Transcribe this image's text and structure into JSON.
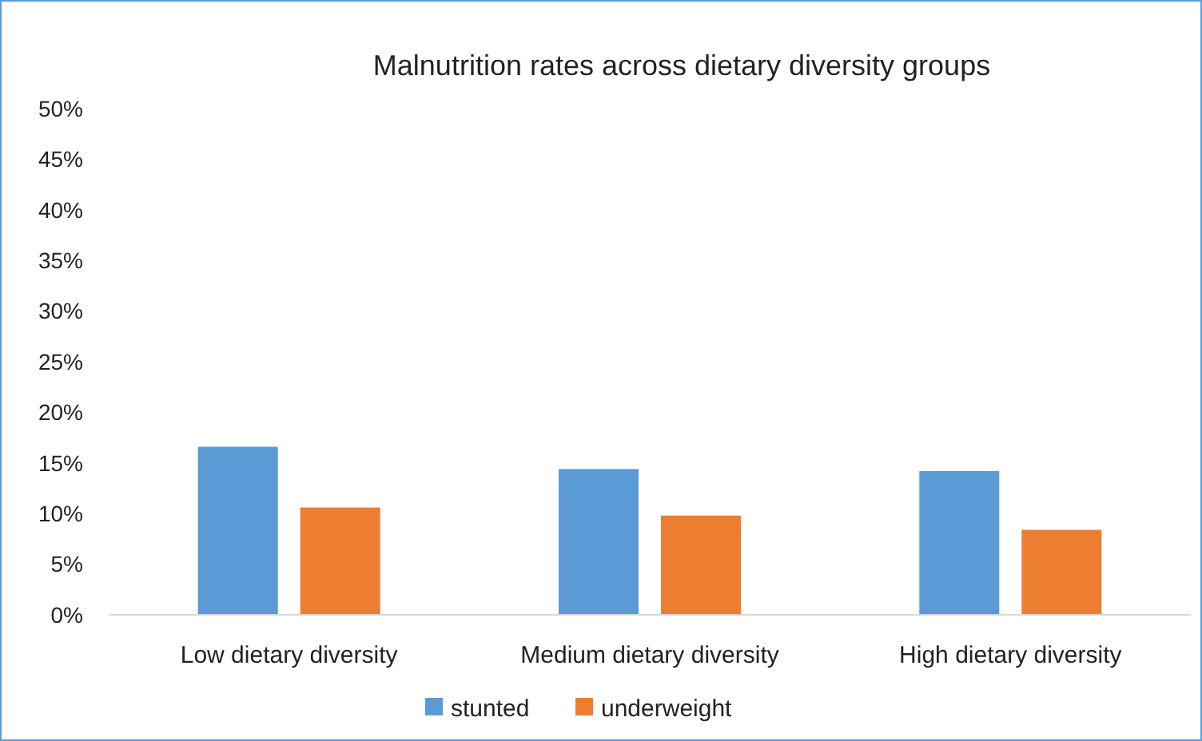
{
  "chart_data": {
    "type": "bar",
    "title": "Malnutrition rates across dietary diversity groups",
    "categories": [
      "Low dietary diversity",
      "Medium dietary diversity",
      "High dietary diversity"
    ],
    "series": [
      {
        "name": "stunted",
        "color": "#5b9bd5",
        "values": [
          16.6,
          14.4,
          14.2
        ]
      },
      {
        "name": "underweight",
        "color": "#ed7d31",
        "values": [
          10.6,
          9.8,
          8.4
        ]
      }
    ],
    "ylim": [
      0,
      50
    ],
    "yticks": [
      {
        "value": 0,
        "label": "0%"
      },
      {
        "value": 5,
        "label": "5%"
      },
      {
        "value": 10,
        "label": "10%"
      },
      {
        "value": 15,
        "label": "15%"
      },
      {
        "value": 20,
        "label": "20%"
      },
      {
        "value": 25,
        "label": "25%"
      },
      {
        "value": 30,
        "label": "30%"
      },
      {
        "value": 35,
        "label": "35%"
      },
      {
        "value": 40,
        "label": "40%"
      },
      {
        "value": 45,
        "label": "45%"
      },
      {
        "value": 50,
        "label": "50%"
      }
    ],
    "grid": false,
    "legend": "bottom"
  }
}
